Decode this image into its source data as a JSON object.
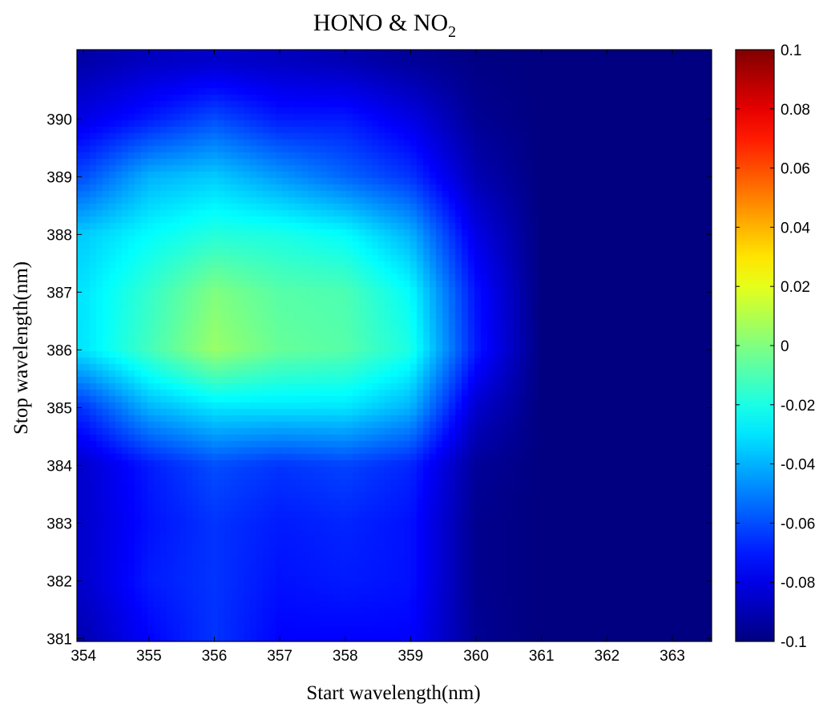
{
  "chart_data": {
    "type": "heatmap",
    "title": "HONO & NO",
    "title_subscript": "2",
    "xlabel": "Start wavelength(nm)",
    "ylabel": "Stop wavelength(nm)",
    "xlim": [
      353.9,
      363.6
    ],
    "ylim": [
      380.95,
      391.2
    ],
    "x_ticks": [
      354,
      355,
      356,
      357,
      358,
      359,
      360,
      361,
      362,
      363
    ],
    "y_ticks": [
      381,
      382,
      383,
      384,
      385,
      386,
      387,
      388,
      389,
      390
    ],
    "colorbar": {
      "colormap": "jet",
      "range": [
        -0.1,
        0.1
      ],
      "ticks": [
        "-0.1",
        "-0.08",
        "-0.06",
        "-0.04",
        "-0.02",
        "0",
        "0.02",
        "0.04",
        "0.06",
        "0.08",
        "0.1"
      ]
    },
    "x": [
      354,
      355,
      356,
      357,
      358,
      359,
      360,
      361,
      362,
      363
    ],
    "y": [
      381,
      382,
      383,
      384,
      385,
      386,
      387,
      388,
      389,
      390,
      391
    ],
    "z": [
      [
        -0.09,
        -0.075,
        -0.065,
        -0.075,
        -0.075,
        -0.075,
        -0.096,
        -0.1,
        -0.1,
        -0.1
      ],
      [
        -0.085,
        -0.07,
        -0.065,
        -0.072,
        -0.07,
        -0.072,
        -0.097,
        -0.1,
        -0.1,
        -0.1
      ],
      [
        -0.085,
        -0.072,
        -0.065,
        -0.07,
        -0.068,
        -0.072,
        -0.097,
        -0.1,
        -0.1,
        -0.1
      ],
      [
        -0.085,
        -0.07,
        -0.06,
        -0.065,
        -0.062,
        -0.068,
        -0.095,
        -0.1,
        -0.1,
        -0.1
      ],
      [
        -0.065,
        -0.04,
        -0.03,
        -0.03,
        -0.03,
        -0.04,
        -0.085,
        -0.1,
        -0.1,
        -0.1
      ],
      [
        -0.03,
        -0.012,
        0.005,
        -0.005,
        -0.008,
        -0.02,
        -0.07,
        -0.1,
        -0.1,
        -0.1
      ],
      [
        -0.03,
        -0.015,
        0.0,
        -0.008,
        -0.01,
        -0.025,
        -0.072,
        -0.1,
        -0.1,
        -0.1
      ],
      [
        -0.035,
        -0.025,
        -0.018,
        -0.02,
        -0.025,
        -0.04,
        -0.08,
        -0.1,
        -0.1,
        -0.1
      ],
      [
        -0.06,
        -0.04,
        -0.035,
        -0.045,
        -0.055,
        -0.065,
        -0.09,
        -0.1,
        -0.1,
        -0.1
      ],
      [
        -0.08,
        -0.07,
        -0.06,
        -0.07,
        -0.07,
        -0.08,
        -0.096,
        -0.1,
        -0.1,
        -0.1
      ],
      [
        -0.092,
        -0.087,
        -0.085,
        -0.087,
        -0.09,
        -0.095,
        -0.099,
        -0.1,
        -0.1,
        -0.1
      ]
    ]
  }
}
